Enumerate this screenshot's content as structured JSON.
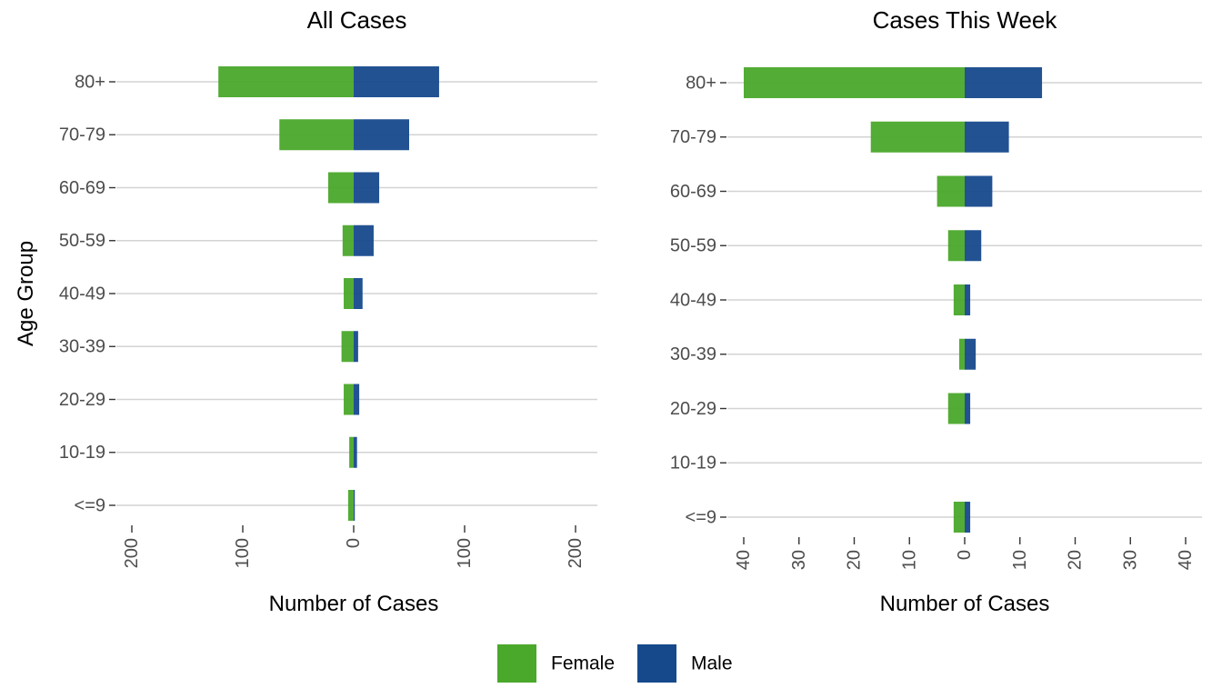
{
  "y_axis_label": "Age Group",
  "legend": [
    {
      "name": "Female",
      "color": "#4aa82a"
    },
    {
      "name": "Male",
      "color": "#16498c"
    }
  ],
  "chart_data": [
    {
      "type": "bar",
      "orientation": "horizontal",
      "title": "All Cases",
      "xlabel": "Number of Cases",
      "ylabel": "Age Group",
      "categories": [
        "80+",
        "70-79",
        "60-69",
        "50-59",
        "40-49",
        "30-39",
        "20-29",
        "10-19",
        "<=9"
      ],
      "xlim": [
        -200,
        200
      ],
      "x_ticks": [
        -200,
        -100,
        0,
        100,
        200
      ],
      "x_tick_labels": [
        "200",
        "100",
        "0",
        "100",
        "200"
      ],
      "series": [
        {
          "name": "Female",
          "values": [
            -122,
            -67,
            -23,
            -10,
            -9,
            -11,
            -9,
            -4,
            -5
          ]
        },
        {
          "name": "Male",
          "values": [
            77,
            50,
            23,
            18,
            8,
            4,
            5,
            3,
            1
          ]
        }
      ],
      "grid": true
    },
    {
      "type": "bar",
      "orientation": "horizontal",
      "title": "Cases This Week",
      "xlabel": "Number of Cases",
      "ylabel": "",
      "categories": [
        "80+",
        "70-79",
        "60-69",
        "50-59",
        "40-49",
        "30-39",
        "20-29",
        "10-19",
        "<=9"
      ],
      "xlim": [
        -40,
        40
      ],
      "x_ticks": [
        -40,
        -30,
        -20,
        -10,
        0,
        10,
        20,
        30,
        40
      ],
      "x_tick_labels": [
        "40",
        "30",
        "20",
        "10",
        "0",
        "10",
        "20",
        "30",
        "40"
      ],
      "series": [
        {
          "name": "Female",
          "values": [
            -40,
            -17,
            -5,
            -3,
            -2,
            -1,
            -3,
            0,
            -2
          ]
        },
        {
          "name": "Male",
          "values": [
            14,
            8,
            5,
            3,
            1,
            2,
            1,
            0,
            1
          ]
        }
      ],
      "grid": true
    }
  ]
}
